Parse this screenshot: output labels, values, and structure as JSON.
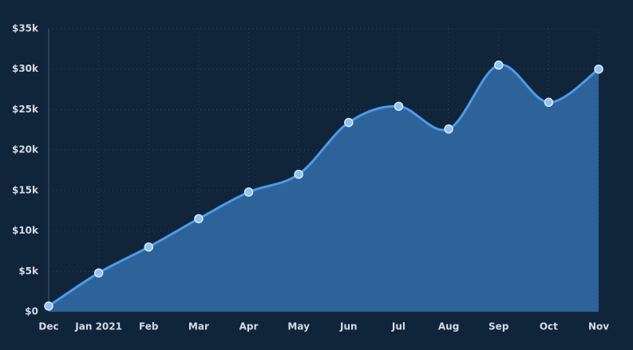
{
  "chart_data": {
    "type": "area",
    "categories": [
      "Dec",
      "Jan 2021",
      "Feb",
      "Mar",
      "Apr",
      "May",
      "Jun",
      "Jul",
      "Aug",
      "Sep",
      "Oct",
      "Nov"
    ],
    "values": [
      700,
      4800,
      8000,
      11500,
      14800,
      17000,
      23400,
      25400,
      22600,
      30500,
      25900,
      30000
    ],
    "color": "#4d9be6",
    "fill_color": "#2e6399",
    "marker_color": "#8fc4f6",
    "ylim": [
      0,
      35000
    ],
    "yticks": [
      {
        "value": 0,
        "label": "$0"
      },
      {
        "value": 5000,
        "label": "$5k"
      },
      {
        "value": 10000,
        "label": "$10k"
      },
      {
        "value": 15000,
        "label": "$15k"
      },
      {
        "value": 20000,
        "label": "$20k"
      },
      {
        "value": 25000,
        "label": "$25k"
      },
      {
        "value": 30000,
        "label": "$30k"
      },
      {
        "value": 35000,
        "label": "$35k"
      }
    ],
    "grid": true
  }
}
